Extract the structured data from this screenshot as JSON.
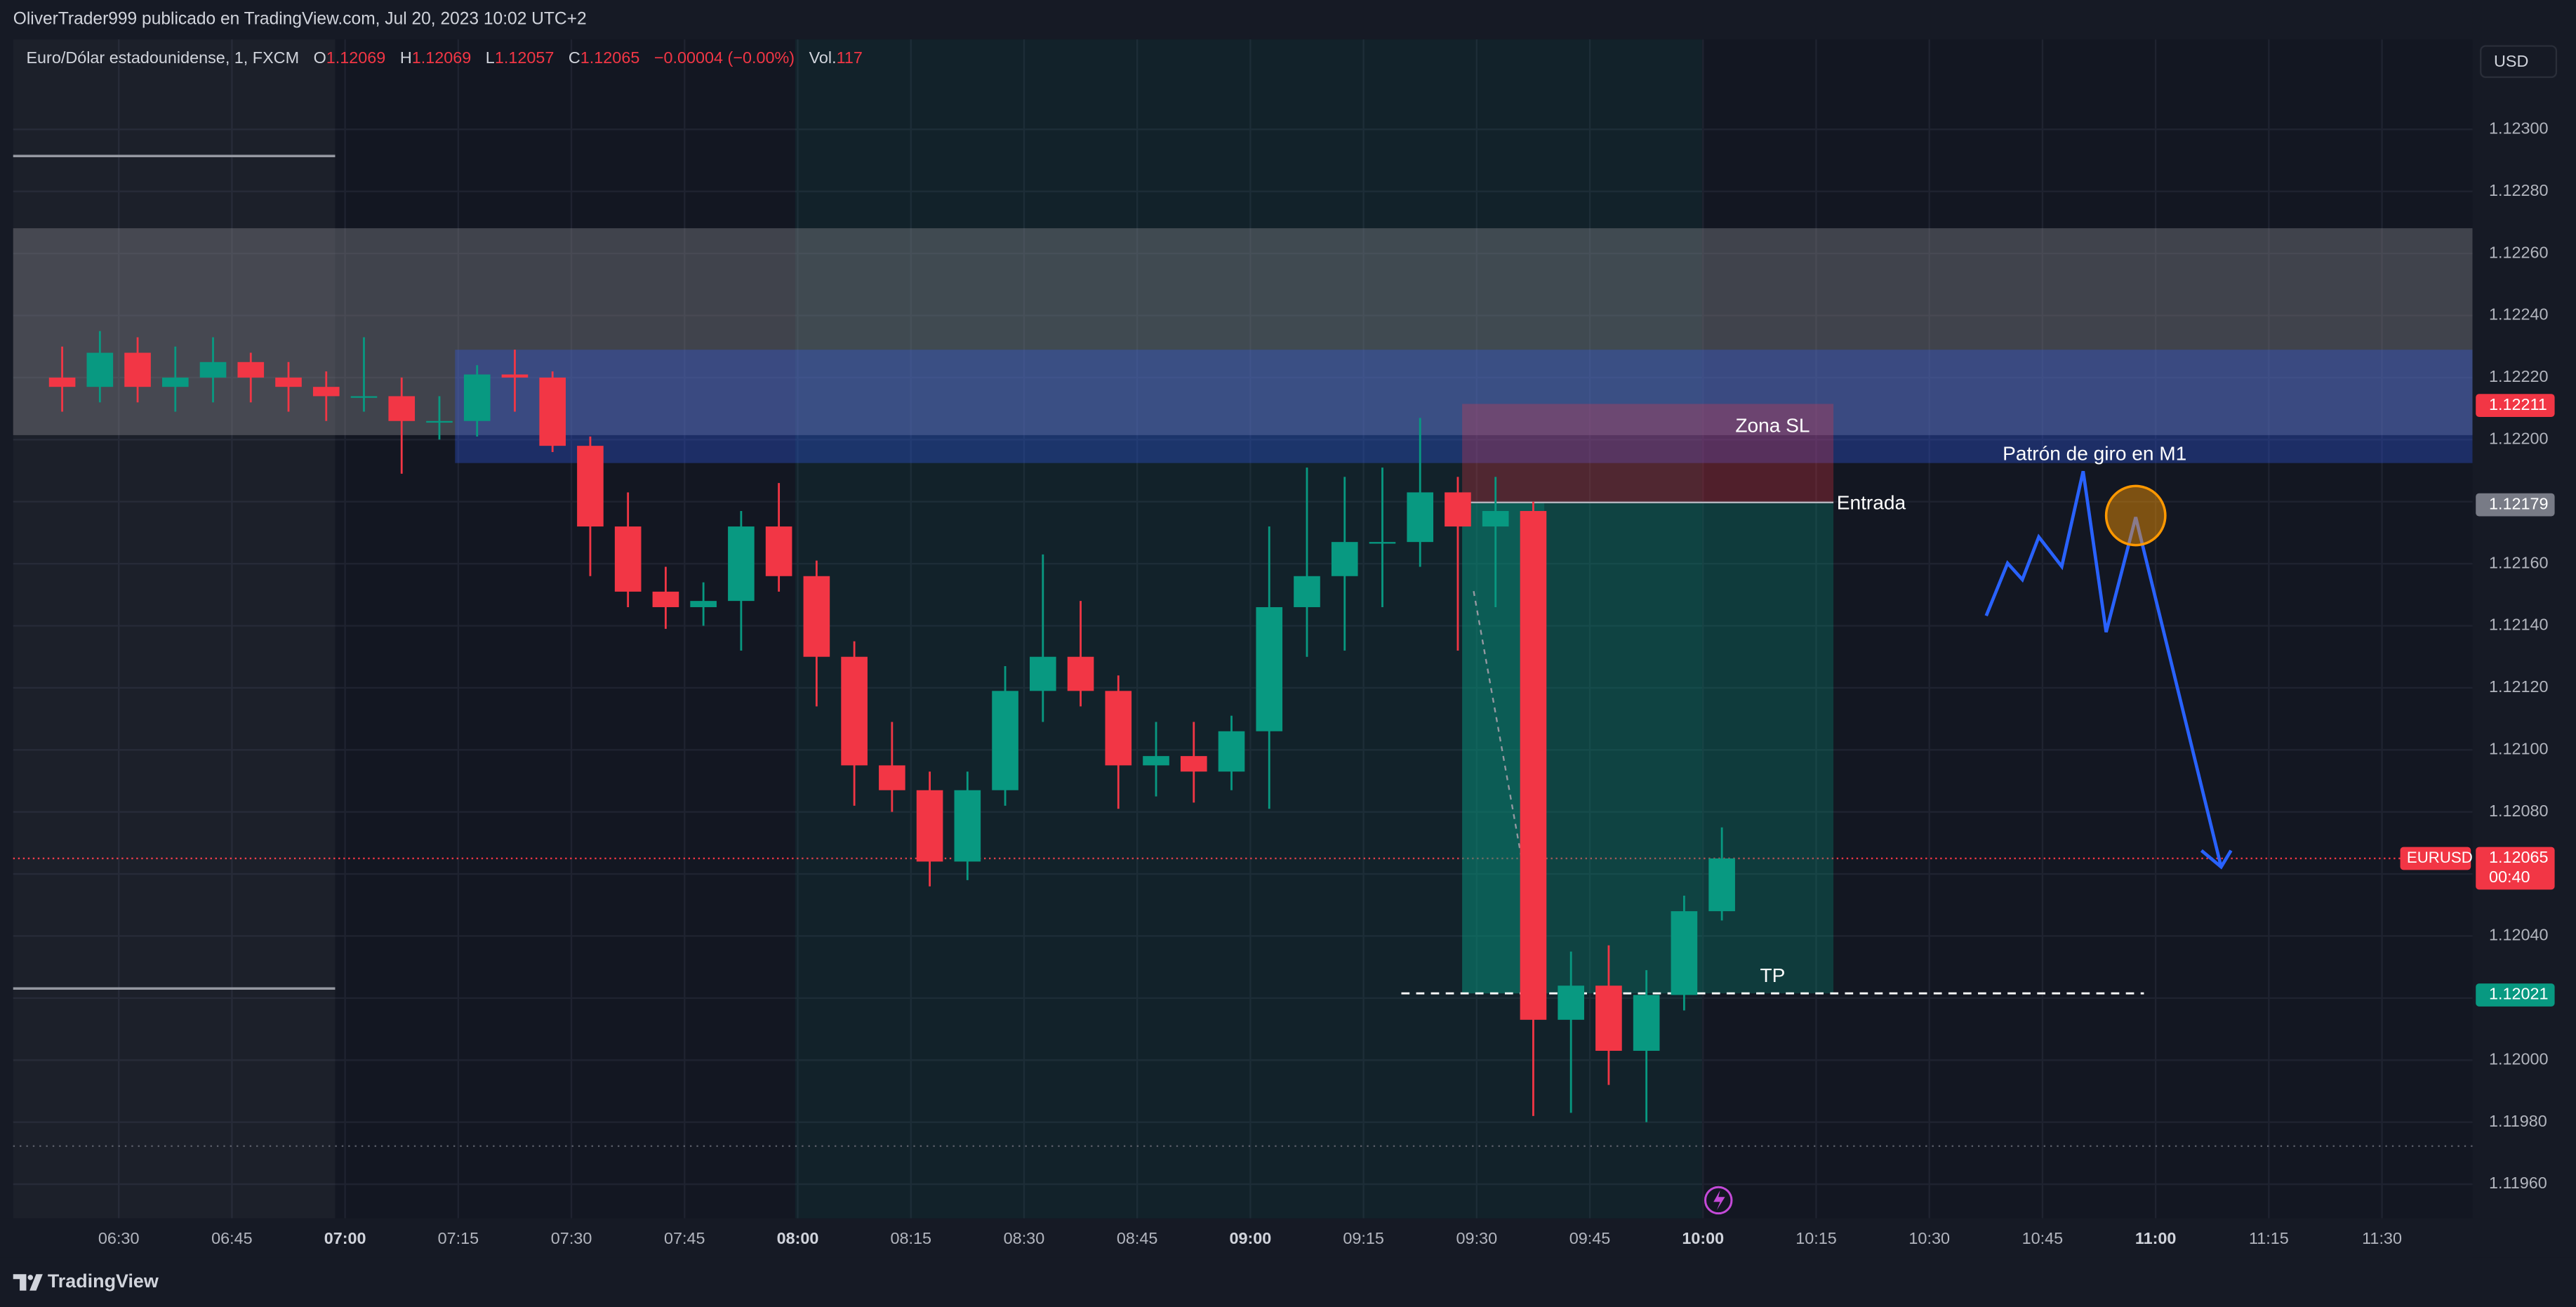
{
  "header": {
    "title": "OliverTrader999 publicado en TradingView.com, Jul 20, 2023 10:02 UTC+2",
    "brand": "TradingView"
  },
  "chart_data": {
    "type": "candlestick",
    "currency": "USD",
    "legend": {
      "symbol": "Euro/Dólar estadounidense, 1, FXCM",
      "open_label": "O",
      "open": 1.12069,
      "high_label": "H",
      "high": 1.12069,
      "low_label": "L",
      "low": 1.12057,
      "close_label": "C",
      "close": 1.12065,
      "change": "−0.00004 (−0.00%)",
      "volume_label": "Vol.",
      "volume": 117
    },
    "up_color": "#089981",
    "down_color": "#f23645",
    "x": [
      "06:20",
      "06:25",
      "06:30",
      "06:35",
      "06:40",
      "06:45",
      "06:50",
      "06:55",
      "07:00",
      "07:05",
      "07:10",
      "07:15",
      "07:20",
      "07:25",
      "07:30",
      "07:35",
      "07:40",
      "07:45",
      "07:50",
      "07:55",
      "08:00",
      "08:05",
      "08:10",
      "08:15",
      "08:20",
      "08:25",
      "08:30",
      "08:35",
      "08:40",
      "08:45",
      "08:50",
      "08:55",
      "09:00",
      "09:05",
      "09:10",
      "09:15",
      "09:20",
      "09:25",
      "09:30",
      "09:35",
      "09:40",
      "09:45",
      "09:50",
      "09:55",
      "10:00"
    ],
    "open": [
      1.1222,
      1.12217,
      1.12228,
      1.12217,
      1.1222,
      1.12225,
      1.1222,
      1.12217,
      1.12214,
      1.12214,
      1.12206,
      1.12206,
      1.12221,
      1.1222,
      1.12198,
      1.12172,
      1.12151,
      1.12146,
      1.12148,
      1.12172,
      1.12156,
      1.1213,
      1.12095,
      1.12087,
      1.12064,
      1.12087,
      1.12119,
      1.1213,
      1.12119,
      1.12095,
      1.12098,
      1.12093,
      1.12106,
      1.12146,
      1.12156,
      1.12167,
      1.12167,
      1.12183,
      1.12172,
      1.12177,
      1.12013,
      1.12024,
      1.12003,
      1.12021,
      1.12048
    ],
    "high": [
      1.1223,
      1.12235,
      1.12233,
      1.1223,
      1.12233,
      1.12228,
      1.12225,
      1.12222,
      1.12233,
      1.1222,
      1.12214,
      1.12224,
      1.12229,
      1.12222,
      1.12201,
      1.12183,
      1.12159,
      1.12154,
      1.12177,
      1.12186,
      1.12161,
      1.12135,
      1.12109,
      1.12093,
      1.12093,
      1.12127,
      1.12163,
      1.12148,
      1.12124,
      1.12109,
      1.12109,
      1.12111,
      1.12172,
      1.12191,
      1.12188,
      1.12191,
      1.12207,
      1.12188,
      1.12188,
      1.1218,
      1.12035,
      1.12037,
      1.12029,
      1.12053,
      1.12075
    ],
    "low": [
      1.12209,
      1.12212,
      1.12212,
      1.12209,
      1.12212,
      1.12212,
      1.12209,
      1.12206,
      1.12209,
      1.12189,
      1.122,
      1.12201,
      1.12209,
      1.12196,
      1.12156,
      1.12146,
      1.12139,
      1.1214,
      1.12132,
      1.12151,
      1.12114,
      1.12082,
      1.1208,
      1.12056,
      1.12058,
      1.12082,
      1.12109,
      1.12114,
      1.12081,
      1.12085,
      1.12083,
      1.12087,
      1.12081,
      1.1213,
      1.12132,
      1.12146,
      1.12159,
      1.12132,
      1.12146,
      1.11982,
      1.11983,
      1.11992,
      1.1198,
      1.12016,
      1.12045
    ],
    "close": [
      1.12217,
      1.12228,
      1.12217,
      1.1222,
      1.12225,
      1.1222,
      1.12217,
      1.12214,
      1.12214,
      1.12206,
      1.12206,
      1.12221,
      1.1222,
      1.12198,
      1.12172,
      1.12151,
      1.12146,
      1.12148,
      1.12172,
      1.12156,
      1.1213,
      1.12095,
      1.12087,
      1.12064,
      1.12087,
      1.12119,
      1.1213,
      1.12119,
      1.12095,
      1.12098,
      1.12093,
      1.12106,
      1.12146,
      1.12156,
      1.12167,
      1.12167,
      1.12183,
      1.12172,
      1.12177,
      1.12013,
      1.12024,
      1.12003,
      1.12021,
      1.12048,
      1.12065
    ],
    "xlim": [
      "06:16",
      "11:42"
    ],
    "xticks": [
      "06:30",
      "06:45",
      "07:00",
      "07:15",
      "07:30",
      "07:45",
      "08:00",
      "08:15",
      "08:30",
      "08:45",
      "09:00",
      "09:15",
      "09:30",
      "09:45",
      "10:00",
      "10:15",
      "10:30",
      "10:45",
      "11:00",
      "11:15",
      "11:30"
    ],
    "ylim": [
      1.11949,
      1.12329
    ],
    "yticks": [
      {
        "value": 1.1196,
        "label": "1.11960"
      },
      {
        "value": 1.1198,
        "label": "1.11980"
      },
      {
        "value": 1.12,
        "label": "1.12000"
      },
      {
        "value": 1.1202,
        "label": "1.12020"
      },
      {
        "value": 1.1204,
        "label": "1.12040"
      },
      {
        "value": 1.1206,
        "label": "1.12060"
      },
      {
        "value": 1.1208,
        "label": "1.12080"
      },
      {
        "value": 1.121,
        "label": "1.12100"
      },
      {
        "value": 1.1212,
        "label": "1.12120"
      },
      {
        "value": 1.1214,
        "label": "1.12140"
      },
      {
        "value": 1.1216,
        "label": "1.12160"
      },
      {
        "value": 1.1218,
        "label": "1.12180"
      },
      {
        "value": 1.122,
        "label": "1.12200"
      },
      {
        "value": 1.1222,
        "label": "1.12220"
      },
      {
        "value": 1.1224,
        "label": "1.12240"
      },
      {
        "value": 1.1226,
        "label": "1.12260"
      },
      {
        "value": 1.1228,
        "label": "1.12280"
      },
      {
        "value": 1.123,
        "label": "1.12300"
      }
    ],
    "grid": true,
    "price_labels": [
      {
        "value": 1.12211,
        "color": "#f23645"
      },
      {
        "value": 1.12179,
        "color": "#787b86"
      },
      {
        "value": 1.12021,
        "color": "#089981"
      }
    ],
    "current_price": {
      "value": 1.12065,
      "symbol": "EURUSD",
      "countdown": "00:40",
      "color": "#f23645"
    },
    "annotations": [
      "Zona SL",
      "Entrada",
      "TP",
      "Patrón de giro en M1"
    ]
  }
}
